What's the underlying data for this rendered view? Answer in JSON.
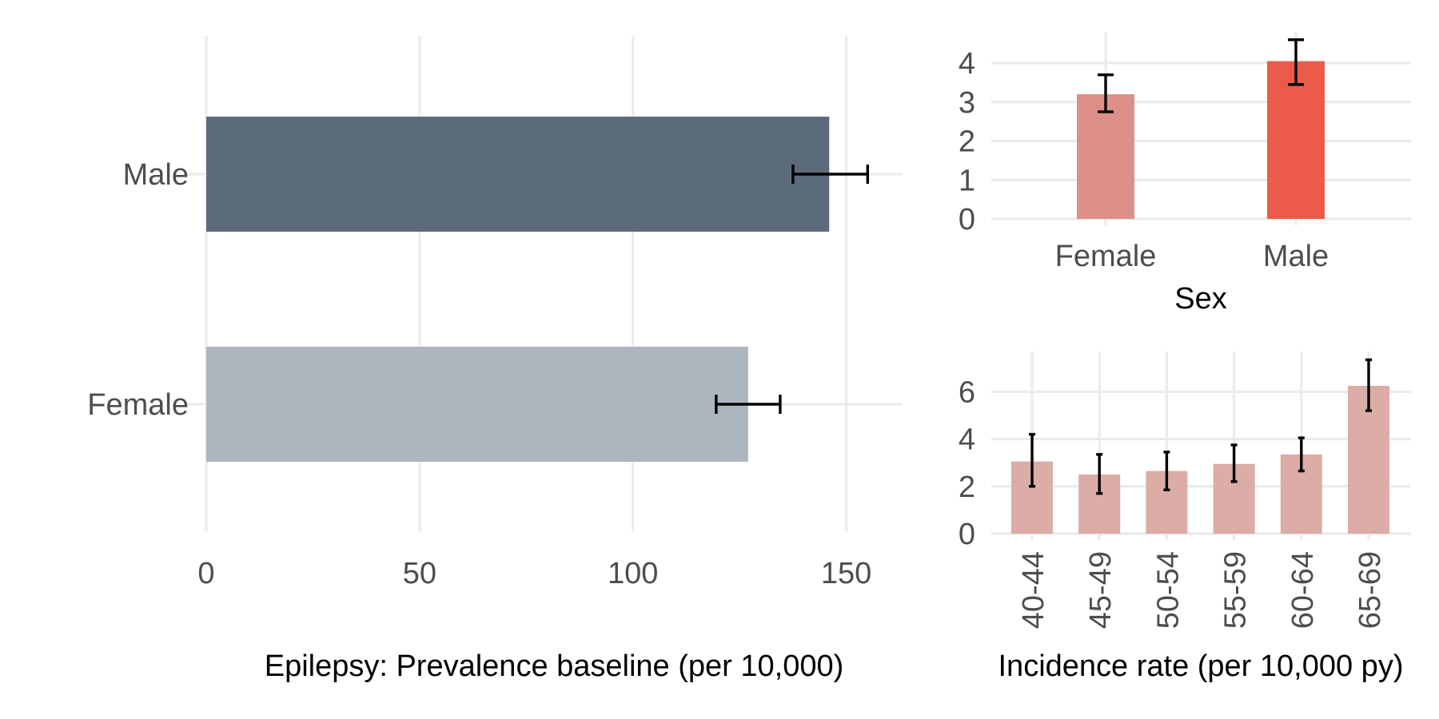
{
  "chart_data": [
    {
      "id": "prevalence",
      "type": "bar",
      "orientation": "horizontal",
      "title": "",
      "xlabel": "Epilepsy: Prevalence baseline (per 10,000)",
      "ylabel": "",
      "categories": [
        "Male",
        "Female"
      ],
      "values": [
        146,
        127
      ],
      "error_low": [
        137.5,
        119.5
      ],
      "error_high": [
        155,
        134.5
      ],
      "colors": [
        "#5c6b7b",
        "#adb5be"
      ],
      "xlim": [
        0,
        163
      ],
      "xticks": [
        0,
        50,
        100,
        150
      ],
      "grid": true,
      "legend": "none"
    },
    {
      "id": "incidence_sex",
      "type": "bar",
      "orientation": "vertical",
      "title": "",
      "xlabel": "Sex",
      "ylabel": "",
      "categories": [
        "Female",
        "Male"
      ],
      "values": [
        3.2,
        4.05
      ],
      "error_low": [
        2.75,
        3.45
      ],
      "error_high": [
        3.7,
        4.6
      ],
      "colors": [
        "#dd9088",
        "#ec5a49"
      ],
      "ylim": [
        0,
        4.8
      ],
      "yticks": [
        0,
        1,
        2,
        3,
        4
      ],
      "grid": true,
      "legend": "none"
    },
    {
      "id": "incidence_age",
      "type": "bar",
      "orientation": "vertical",
      "title": "",
      "xlabel": "Incidence rate (per 10,000 py)",
      "ylabel": "",
      "categories": [
        "40-44",
        "45-49",
        "50-54",
        "55-59",
        "60-64",
        "65-69"
      ],
      "values": [
        3.05,
        2.5,
        2.65,
        2.95,
        3.35,
        6.25
      ],
      "error_low": [
        2.0,
        1.7,
        1.85,
        2.2,
        2.65,
        5.2
      ],
      "error_high": [
        4.2,
        3.35,
        3.45,
        3.75,
        4.05,
        7.35
      ],
      "color": "#dcaca6",
      "ylim": [
        0,
        7.7
      ],
      "yticks": [
        0,
        2,
        4,
        6
      ],
      "grid": true,
      "legend": "none"
    }
  ]
}
